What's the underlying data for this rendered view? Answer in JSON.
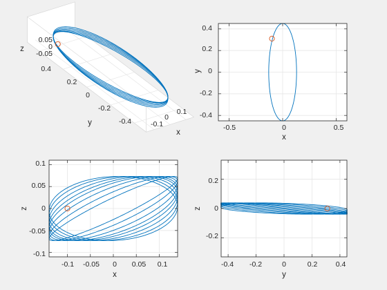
{
  "figure": {
    "background": "#f0f0f0",
    "axes_background": "#ffffff",
    "line_color": "#0072bd",
    "marker_color": "#d95319",
    "grid_color": "#e6e6e6"
  },
  "chart_data": [
    {
      "panel": "3d-view",
      "type": "line",
      "title": "",
      "xlabel": "x",
      "ylabel": "y",
      "zlabel": "z",
      "xlim": [
        -0.15,
        0.15
      ],
      "ylim": [
        -0.5,
        0.5
      ],
      "zlim": [
        -0.08,
        0.08
      ],
      "xticks": [
        "-0.1",
        "0",
        "0.1"
      ],
      "yticks": [
        "-0.4",
        "-0.2",
        "0",
        "0.2",
        "0.4"
      ],
      "zticks": [
        "-0.05",
        "0",
        "0.05"
      ],
      "grid": true,
      "series": [
        {
          "curve": "tilted ellipse loops",
          "x_amplitude": 0.13,
          "y_amplitude": 0.45,
          "z_amplitude": 0.07
        }
      ],
      "markers": [
        {
          "x": -0.1,
          "y": 0.31,
          "z": 0.0
        }
      ]
    },
    {
      "panel": "xy-view",
      "type": "line",
      "title": "",
      "xlabel": "x",
      "ylabel": "y",
      "xlim": [
        -0.6,
        0.6
      ],
      "ylim": [
        -0.45,
        0.45
      ],
      "xticks": [
        "-0.5",
        "0",
        "0.5"
      ],
      "yticks": [
        "-0.4",
        "-0.2",
        "0",
        "0.2",
        "0.4"
      ],
      "grid": true,
      "series": [
        {
          "curve": "ellipse",
          "x_amplitude": 0.13,
          "y_amplitude": 0.45
        }
      ],
      "markers": [
        {
          "x": -0.1,
          "y": 0.31
        }
      ]
    },
    {
      "panel": "xz-view",
      "type": "line",
      "title": "",
      "xlabel": "x",
      "ylabel": "z",
      "xlim": [
        -0.14,
        0.14
      ],
      "ylim": [
        -0.11,
        0.11
      ],
      "xticks": [
        "-0.1",
        "-0.05",
        "0",
        "0.05",
        "0.1"
      ],
      "yticks": [
        "-0.1",
        "-0.05",
        "0",
        "0.05",
        "0.1"
      ],
      "grid": true,
      "series": [
        {
          "curve": "nested tilted ellipses",
          "x_amplitude": 0.14,
          "z_amplitude": 0.073,
          "loops": 8
        }
      ],
      "markers": [
        {
          "x": -0.1,
          "z": 0.0
        }
      ]
    },
    {
      "panel": "yz-view",
      "type": "line",
      "title": "",
      "xlabel": "y",
      "ylabel": "z",
      "xlim": [
        -0.45,
        0.45
      ],
      "ylim": [
        -0.33,
        0.33
      ],
      "xticks": [
        "-0.4",
        "-0.2",
        "0",
        "0.2",
        "0.4"
      ],
      "yticks": [
        "-0.2",
        "0",
        "0.2"
      ],
      "grid": true,
      "series": [
        {
          "curve": "flat loops",
          "y_amplitude": 0.45,
          "z_amplitude": 0.07
        }
      ],
      "markers": [
        {
          "y": 0.31,
          "z": 0.0
        }
      ]
    }
  ]
}
